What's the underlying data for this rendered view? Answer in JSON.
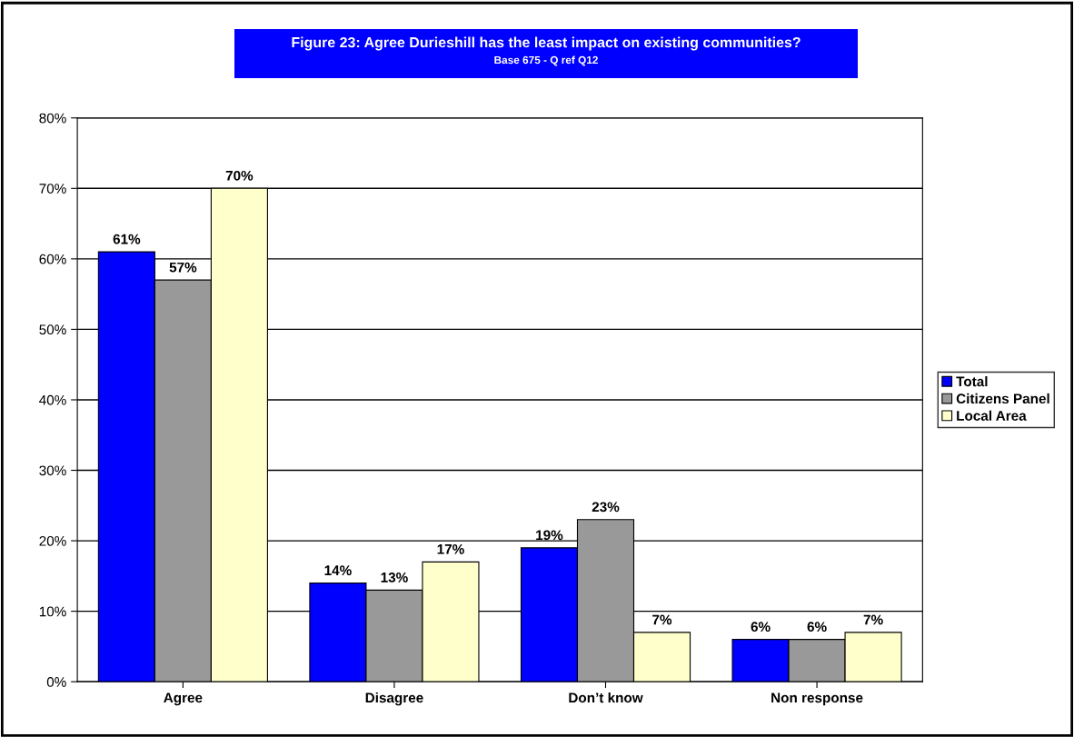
{
  "chart_data": {
    "type": "bar",
    "title": "Figure 23: Agree Durieshill has the least impact on existing communities?",
    "subtitle": "Base 675 - Q ref Q12",
    "categories": [
      "Agree",
      "Disagree",
      "Don’t know",
      "Non response"
    ],
    "series": [
      {
        "name": "Total",
        "color": "#0000ff",
        "values": [
          61,
          14,
          19,
          6
        ],
        "value_labels": [
          "61%",
          "14%",
          "19%",
          "6%"
        ]
      },
      {
        "name": "Citizens Panel",
        "color": "#999999",
        "values": [
          57,
          13,
          23,
          6
        ],
        "value_labels": [
          "57%",
          "13%",
          "23%",
          "6%"
        ]
      },
      {
        "name": "Local Area",
        "color": "#ffffcc",
        "values": [
          70,
          17,
          7,
          7
        ],
        "value_labels": [
          "70%",
          "17%",
          "7%",
          "7%"
        ]
      }
    ],
    "ylim": [
      0,
      80
    ],
    "yticks": [
      {
        "value": 0,
        "label": "0%"
      },
      {
        "value": 10,
        "label": "10%"
      },
      {
        "value": 20,
        "label": "20%"
      },
      {
        "value": 30,
        "label": "30%"
      },
      {
        "value": 40,
        "label": "40%"
      },
      {
        "value": 50,
        "label": "50%"
      },
      {
        "value": 60,
        "label": "60%"
      },
      {
        "value": 70,
        "label": "70%"
      },
      {
        "value": 80,
        "label": "80%"
      }
    ],
    "grid": "y",
    "legend": "right"
  }
}
